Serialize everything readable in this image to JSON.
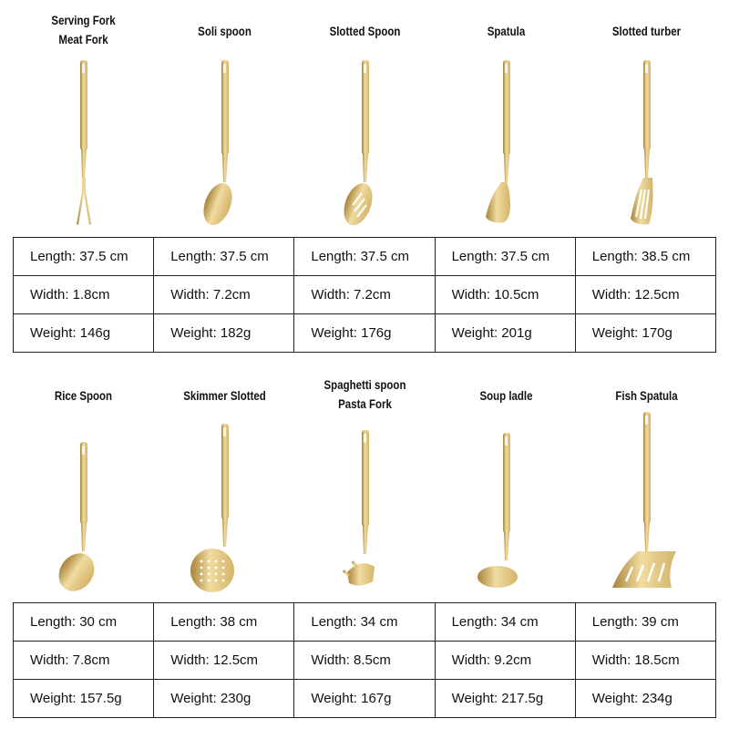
{
  "colors": {
    "gold": "#d4b36a",
    "gold_dark": "#a8823a",
    "gold_light": "#f0dca0",
    "border": "#222222"
  },
  "rows": [
    {
      "items": [
        {
          "title": [
            "Serving Fork",
            "Meat Fork"
          ],
          "icon": "fork-icon",
          "length": "Length: 37.5 cm",
          "width": "Width: 1.8cm",
          "weight": "Weight: 146g"
        },
        {
          "title": [
            "Soli spoon"
          ],
          "icon": "spoon-icon",
          "length": "Length: 37.5 cm",
          "width": "Width: 7.2cm",
          "weight": "Weight: 182g"
        },
        {
          "title": [
            "Slotted Spoon"
          ],
          "icon": "slotted-spoon-icon",
          "length": "Length: 37.5 cm",
          "width": "Width: 7.2cm",
          "weight": "Weight: 176g"
        },
        {
          "title": [
            "Spatula"
          ],
          "icon": "spatula-icon",
          "length": "Length: 37.5 cm",
          "width": "Width: 10.5cm",
          "weight": "Weight: 201g"
        },
        {
          "title": [
            "Slotted turber"
          ],
          "icon": "slotted-turner-icon",
          "length": "Length: 38.5 cm",
          "width": "Width: 12.5cm",
          "weight": "Weight: 170g"
        }
      ]
    },
    {
      "items": [
        {
          "title": [
            "Rice Spoon"
          ],
          "icon": "rice-spoon-icon",
          "length": "Length: 30 cm",
          "width": "Width: 7.8cm",
          "weight": "Weight: 157.5g"
        },
        {
          "title": [
            "Skimmer Slotted"
          ],
          "icon": "skimmer-icon",
          "length": "Length: 38 cm",
          "width": "Width: 12.5cm",
          "weight": "Weight: 230g"
        },
        {
          "title": [
            "Spaghetti spoon",
            "Pasta Fork"
          ],
          "icon": "pasta-fork-icon",
          "length": "Length: 34 cm",
          "width": "Width: 8.5cm",
          "weight": "Weight: 167g"
        },
        {
          "title": [
            "Soup ladle"
          ],
          "icon": "ladle-icon",
          "length": "Length: 34 cm",
          "width": "Width: 9.2cm",
          "weight": "Weight: 217.5g"
        },
        {
          "title": [
            "Fish Spatula"
          ],
          "icon": "fish-spatula-icon",
          "length": "Length: 39 cm",
          "width": "Width: 18.5cm",
          "weight": "Weight: 234g"
        }
      ]
    }
  ]
}
